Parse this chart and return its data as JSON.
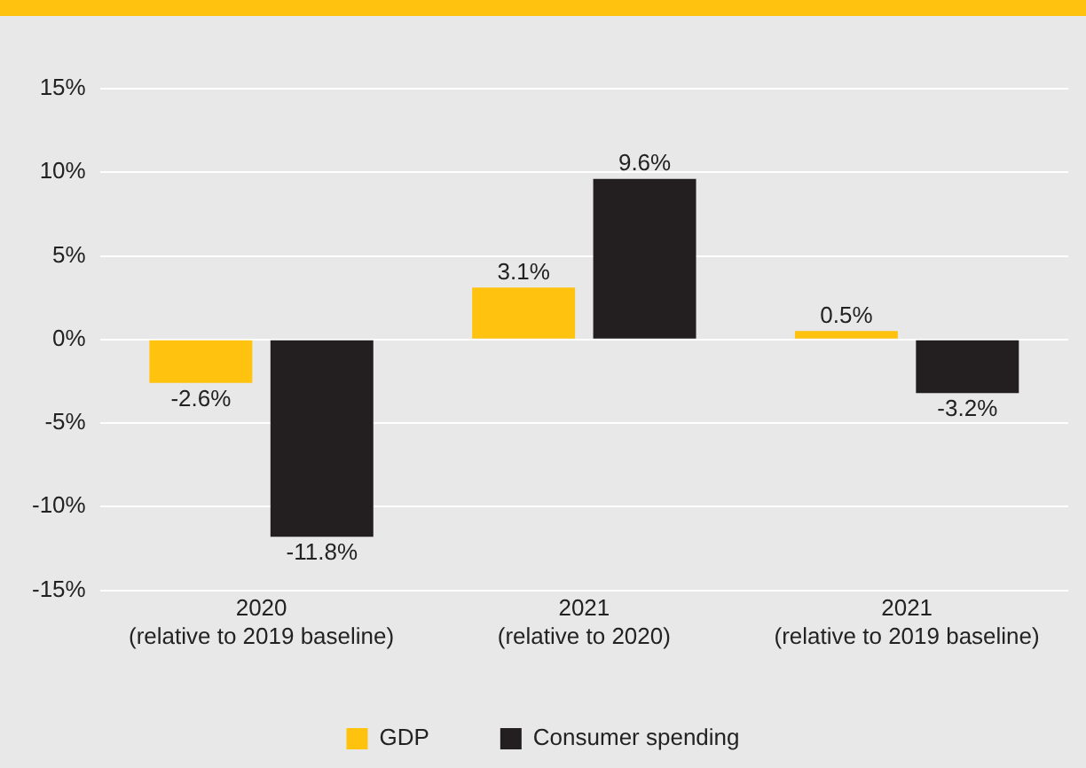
{
  "chart_data": {
    "type": "bar",
    "categories": [
      "2020\n(relative to 2019 baseline)",
      "2021\n(relative to 2020)",
      "2021\n(relative to 2019 baseline)"
    ],
    "series": [
      {
        "name": "GDP",
        "color": "#ffc20e",
        "values": [
          -2.6,
          3.1,
          0.5
        ],
        "value_labels": [
          "-2.6%",
          "3.1%",
          "0.5%"
        ]
      },
      {
        "name": "Consumer spending",
        "color": "#231f20",
        "values": [
          -11.8,
          9.6,
          -3.2
        ],
        "value_labels": [
          "-11.8%",
          "9.6%",
          "-3.2%"
        ]
      }
    ],
    "ylim": [
      -15,
      15
    ],
    "yticks": [
      {
        "value": -15,
        "label": "-15%"
      },
      {
        "value": -10,
        "label": "-10%"
      },
      {
        "value": -5,
        "label": "-5%"
      },
      {
        "value": 0,
        "label": "0%"
      },
      {
        "value": 5,
        "label": "5%"
      },
      {
        "value": 10,
        "label": "10%"
      },
      {
        "value": 15,
        "label": "15%"
      }
    ],
    "grid": "y",
    "legend": "bottom"
  }
}
